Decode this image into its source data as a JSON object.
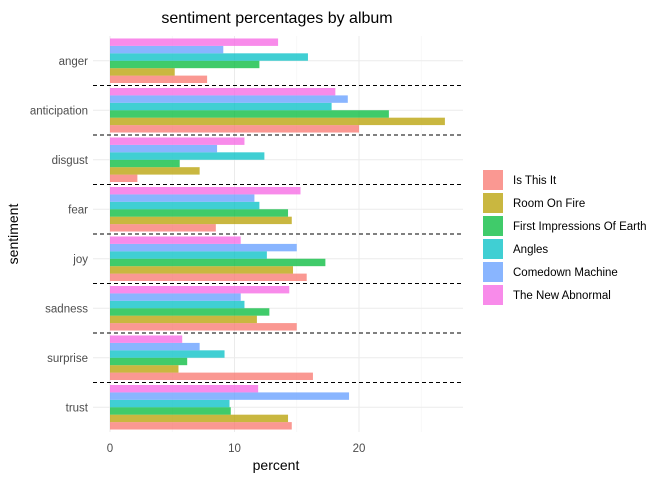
{
  "chart_data": {
    "type": "bar",
    "orientation": "horizontal",
    "title": "sentiment percentages by album",
    "xlabel": "percent",
    "ylabel": "sentiment",
    "xlim": [
      0,
      28
    ],
    "xticks": [
      0,
      10,
      20
    ],
    "grid": true,
    "legend_position": "right",
    "categories": [
      "anger",
      "anticipation",
      "disgust",
      "fear",
      "joy",
      "sadness",
      "surprise",
      "trust"
    ],
    "series": [
      {
        "name": "Is This It",
        "color": "#F8766D",
        "values": [
          7.8,
          20.0,
          2.2,
          8.5,
          15.8,
          15.0,
          16.3,
          14.6
        ]
      },
      {
        "name": "Room On Fire",
        "color": "#B79F00",
        "values": [
          5.2,
          26.9,
          7.2,
          14.6,
          14.7,
          11.8,
          5.5,
          14.3
        ]
      },
      {
        "name": "First Impressions Of Earth",
        "color": "#00BA38",
        "values": [
          12.0,
          22.4,
          5.6,
          14.3,
          17.3,
          12.8,
          6.2,
          9.7
        ]
      },
      {
        "name": "Angles",
        "color": "#00BFC4",
        "values": [
          15.9,
          17.8,
          12.4,
          12.0,
          12.6,
          10.8,
          9.2,
          9.6
        ]
      },
      {
        "name": "Comedown Machine",
        "color": "#619CFF",
        "values": [
          9.1,
          19.1,
          8.6,
          11.6,
          15.0,
          10.5,
          7.2,
          19.2
        ]
      },
      {
        "name": "The New Abnormal",
        "color": "#F564E3",
        "values": [
          13.5,
          18.1,
          10.8,
          15.3,
          10.5,
          14.4,
          5.8,
          11.9
        ]
      }
    ]
  }
}
